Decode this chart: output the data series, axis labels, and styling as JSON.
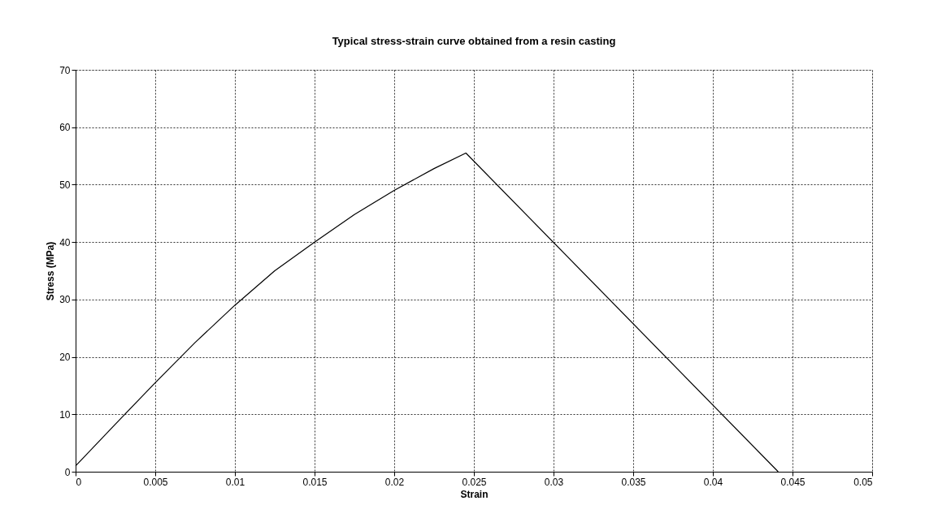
{
  "chart_data": {
    "type": "line",
    "title": "Typical stress-strain curve obtained from a resin casting",
    "xlabel": "Strain",
    "ylabel": "Stress (MPa)",
    "x": [
      0,
      0.0025,
      0.005,
      0.0075,
      0.01,
      0.0125,
      0.015,
      0.0175,
      0.02,
      0.0225,
      0.0245,
      0.0441
    ],
    "series": [
      {
        "color": "#000000",
        "values": [
          1,
          8.3,
          15.5,
          22.5,
          29,
          35,
          40,
          44.8,
          49,
          52.8,
          55.5,
          0
        ]
      }
    ],
    "xlim": [
      0,
      0.05
    ],
    "xticks": [
      0,
      0.005,
      0.01,
      0.015,
      0.02,
      0.025,
      0.03,
      0.035,
      0.04,
      0.045,
      0.05
    ],
    "ylim": [
      0,
      70
    ],
    "yticks": [
      0,
      10,
      20,
      30,
      40,
      50,
      60,
      70
    ],
    "grid": true,
    "marker": "none",
    "line_style": "solid"
  }
}
